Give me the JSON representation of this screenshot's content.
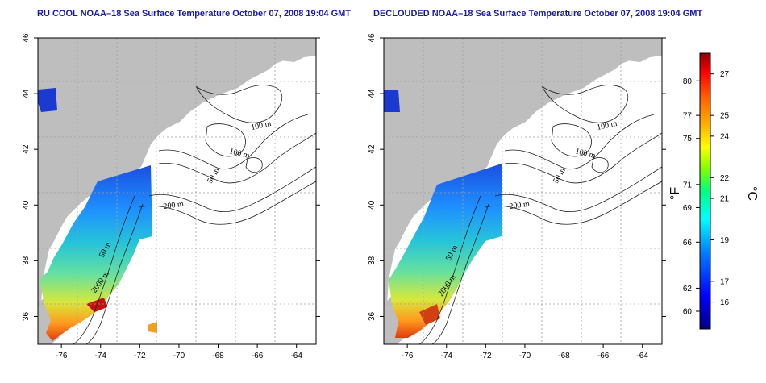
{
  "panels": [
    {
      "title": "RU COOL NOAA–18 Sea Surface Temperature October 07, 2008 19:04 GMT"
    },
    {
      "title": "DECLOUDED NOAA–18 Sea Surface Temperature October 07, 2008 19:04 GMT"
    }
  ],
  "axes": {
    "lon_ticks": [
      -76,
      -74,
      -72,
      -70,
      -68,
      -66,
      -64
    ],
    "lon_labels": [
      "-76",
      "-74",
      "-72",
      "-70",
      "-68",
      "-66",
      "-64"
    ],
    "lat_ticks": [
      36,
      38,
      40,
      42,
      44,
      46
    ],
    "lat_labels": [
      "36",
      "38",
      "40",
      "42",
      "44",
      "46"
    ],
    "lon_range": [
      -77.2,
      -63.0
    ],
    "lat_range": [
      35.0,
      46.0
    ]
  },
  "contour_labels": [
    "100 m",
    "100 m",
    "50 m",
    "200 m",
    "50 m",
    "2000 m"
  ],
  "colorbar": {
    "fahrenheit_labels": [
      "80",
      "77",
      "75",
      "71",
      "69",
      "66",
      "62",
      "60"
    ],
    "fahrenheit_values": [
      80,
      77,
      75,
      71,
      69,
      66,
      62,
      60
    ],
    "celsius_labels": [
      "27",
      "25",
      "24",
      "22",
      "21",
      "19",
      "17",
      "16"
    ],
    "celsius_values": [
      27,
      25,
      24,
      22,
      21,
      19,
      17,
      16
    ],
    "unit_f": "°F",
    "unit_c": "°C",
    "range_c": [
      14.7,
      28.0
    ],
    "colors": [
      "#000080",
      "#0000ff",
      "#0080ff",
      "#00ffff",
      "#00ff80",
      "#80ff00",
      "#ffff00",
      "#ffb000",
      "#ff6000",
      "#ff0000",
      "#8b0000"
    ]
  },
  "colors": {
    "land": "#bebebe",
    "contour": "#202020",
    "grid": "#a0a0a0",
    "title": "#1a1aa8"
  }
}
